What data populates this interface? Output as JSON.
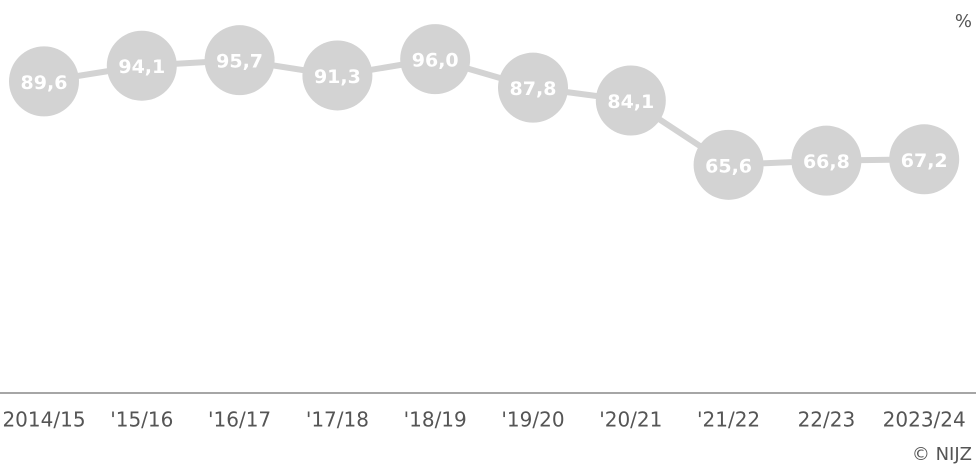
{
  "chart_data": {
    "type": "line",
    "unit": "%",
    "source": "© NIJZ",
    "categories": [
      "2014/15",
      "'15/16",
      "'16/17",
      "'17/18",
      "'18/19",
      "'19/20",
      "'20/21",
      "'21/22",
      "22/23",
      "2023/24"
    ],
    "series": [
      {
        "color": "#d3d3d3",
        "values": [
          89.6,
          94.1,
          95.7,
          91.3,
          96.0,
          87.8,
          84.1,
          65.6,
          66.8,
          67.2
        ],
        "value_labels": [
          "89,6",
          "94,1",
          "95,7",
          "91,3",
          "96,0",
          "87,8",
          "84,1",
          "65,6",
          "66,8",
          "67,2"
        ]
      }
    ],
    "ylim": [
      0,
      113
    ]
  }
}
